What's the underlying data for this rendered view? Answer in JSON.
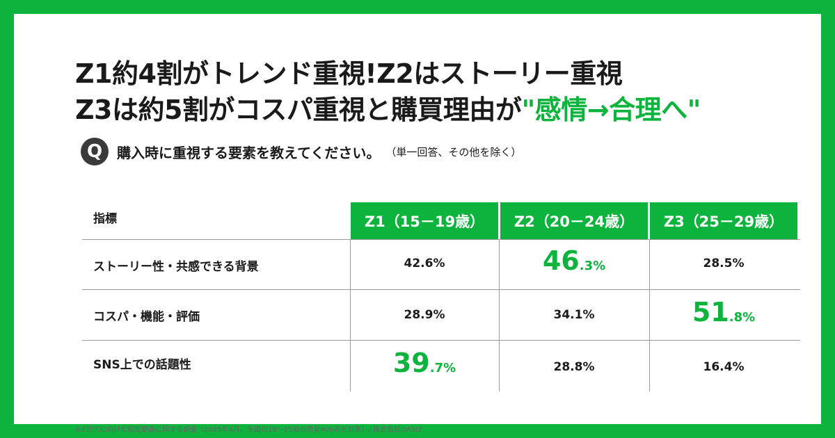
{
  "headline": {
    "line1": "Z1約4割がトレンド重視!Z2はストーリー重視",
    "line2_plain": "Z3は約5割がコスパ重視と購買理由が",
    "line2_accent": "\"感情→合理へ\""
  },
  "question": {
    "badge": "Q",
    "text": "購入時に重視する要素を教えてください。",
    "note": "（単一回答、その他を除く）"
  },
  "footnote": "※Z世代に向けた縦型動画に関する調査（2025年4月、全国の18～25歳の男女400名を対象）/ 株式会社OASIZ",
  "colors": {
    "accent": "#0cb33c",
    "text": "#1a1a1a",
    "badge": "#3a3a3a"
  },
  "chart_data": {
    "type": "table",
    "row_header": "指標",
    "columns": [
      "Z1（15－19歳）",
      "Z2（20－24歳）",
      "Z3（25－29歳）"
    ],
    "rows": [
      {
        "label": "ストーリー性・共感できる背景",
        "cells": [
          {
            "value": 42.6,
            "int": "",
            "frac": "",
            "text": "42.6%",
            "highlight": false
          },
          {
            "value": 46.3,
            "int": "46",
            "frac": ".3%",
            "text": "",
            "highlight": true
          },
          {
            "value": 28.5,
            "int": "",
            "frac": "",
            "text": "28.5%",
            "highlight": false
          }
        ]
      },
      {
        "label": "コスパ・機能・評価",
        "cells": [
          {
            "value": 28.9,
            "int": "",
            "frac": "",
            "text": "28.9%",
            "highlight": false
          },
          {
            "value": 34.1,
            "int": "",
            "frac": "",
            "text": "34.1%",
            "highlight": false
          },
          {
            "value": 51.8,
            "int": "51",
            "frac": ".8%",
            "text": "",
            "highlight": true
          }
        ]
      },
      {
        "label": "SNS上での話題性",
        "cells": [
          {
            "value": 39.7,
            "int": "39",
            "frac": ".7%",
            "text": "",
            "highlight": true
          },
          {
            "value": 28.8,
            "int": "",
            "frac": "",
            "text": "28.8%",
            "highlight": false
          },
          {
            "value": 16.4,
            "int": "",
            "frac": "",
            "text": "16.4%",
            "highlight": false
          }
        ]
      }
    ]
  }
}
